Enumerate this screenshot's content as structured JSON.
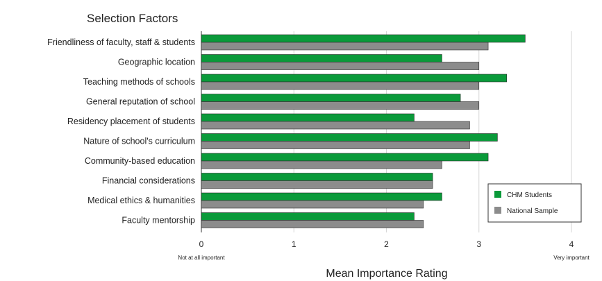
{
  "chart_data": {
    "type": "bar",
    "orientation": "horizontal",
    "title": "Selection Factors",
    "xlabel": "Mean Importance Rating",
    "ylabel": "",
    "xlim": [
      0,
      4
    ],
    "xticks": [
      0,
      1,
      2,
      3,
      4
    ],
    "xtick_annotations": {
      "min": "Not at all important",
      "max": "Very important"
    },
    "grid": true,
    "legend_position": "bottom-right",
    "categories": [
      "Friendliness of faculty, staff & students",
      "Geographic location",
      "Teaching methods of schools",
      "General reputation of school",
      "Residency placement of students",
      "Nature of school's curriculum",
      "Community-based education",
      "Financial considerations",
      "Medical ethics & humanities",
      "Faculty mentorship"
    ],
    "series": [
      {
        "name": "CHM Students",
        "color": "#0a9a3a",
        "values": [
          3.5,
          2.6,
          3.3,
          2.8,
          2.3,
          3.2,
          3.1,
          2.5,
          2.6,
          2.3
        ]
      },
      {
        "name": "National Sample",
        "color": "#8c8c8c",
        "values": [
          3.1,
          3.0,
          3.0,
          3.0,
          2.9,
          2.9,
          2.6,
          2.5,
          2.4,
          2.4
        ]
      }
    ]
  }
}
